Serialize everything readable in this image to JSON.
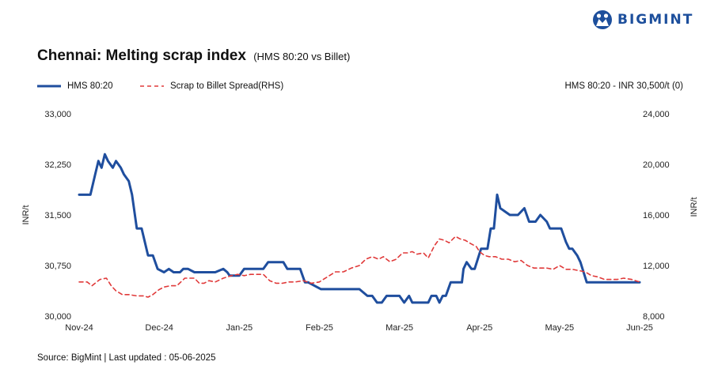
{
  "brand": {
    "name": "BIGMINT",
    "accent": "#1d4f9c"
  },
  "title": "Chennai: Melting scrap index",
  "subtitle": "(HMS 80:20 vs Billet)",
  "note": "HMS 80:20 - INR 30,500/t (0)",
  "source": "Source: BigMint | Last updated : 05-06-2025",
  "colors": {
    "primary": "#1f4e9e",
    "secondary": "#e03a3a"
  },
  "chart_data": {
    "type": "line",
    "x_categories": [
      "Nov-24",
      "Dec-24",
      "Jan-25",
      "Feb-25",
      "Mar-25",
      "Apr-25",
      "May-25",
      "Jun-25"
    ],
    "ylabel_left": "INR/t",
    "ylabel_right": "INR/t",
    "ylim_left": [
      30000,
      33000
    ],
    "ylim_right": [
      8000,
      24000
    ],
    "yticks_left": [
      "33,000",
      "32,250",
      "31,500",
      "30,750",
      "30,000"
    ],
    "yticks_right": [
      "24,000",
      "20,000",
      "16,000",
      "12,000",
      "8,000"
    ],
    "legend_position": "top-left",
    "grid": false,
    "series": [
      {
        "name": "HMS 80:20",
        "axis": "left",
        "style": "solid",
        "x": [
          0,
          0.14,
          0.2,
          0.24,
          0.28,
          0.32,
          0.36,
          0.42,
          0.46,
          0.52,
          0.56,
          0.62,
          0.66,
          0.72,
          0.78,
          0.86,
          0.92,
          0.98,
          1.06,
          1.12,
          1.18,
          1.24,
          1.26,
          1.3,
          1.36,
          1.44,
          1.52,
          1.6,
          1.7,
          1.8,
          1.85,
          1.88,
          1.94,
          2.0,
          2.06,
          2.3,
          2.36,
          2.4,
          2.55,
          2.6,
          2.72,
          2.76,
          2.82,
          2.86,
          3.02,
          3.06,
          3.14,
          3.2,
          3.5,
          3.6,
          3.62,
          3.66,
          3.72,
          3.74,
          3.78,
          3.84,
          4.0,
          4.06,
          4.12,
          4.16,
          4.2,
          4.26,
          4.3,
          4.34,
          4.36,
          4.4,
          4.46,
          4.5,
          4.54,
          4.58,
          4.64,
          4.7,
          4.74,
          4.78,
          4.8,
          4.84,
          4.9,
          4.94,
          5.02,
          5.06,
          5.1,
          5.14,
          5.18,
          5.22,
          5.26,
          5.38,
          5.44,
          5.48,
          5.56,
          5.62,
          5.66,
          5.7,
          5.76,
          5.84,
          5.88,
          5.96,
          6.02,
          6.08,
          6.12,
          6.16,
          6.22,
          6.26,
          6.34,
          6.4,
          6.46,
          6.5,
          6.56,
          6.64,
          6.68,
          6.72,
          6.76,
          6.9,
          7.0
        ],
        "values": [
          31800,
          31800,
          32100,
          32300,
          32200,
          32400,
          32300,
          32200,
          32300,
          32200,
          32100,
          32000,
          31800,
          31300,
          31300,
          30900,
          30900,
          30700,
          30650,
          30700,
          30650,
          30650,
          30650,
          30700,
          30700,
          30650,
          30650,
          30650,
          30650,
          30700,
          30650,
          30600,
          30600,
          30600,
          30700,
          30700,
          30800,
          30800,
          30800,
          30700,
          30700,
          30700,
          30500,
          30500,
          30400,
          30400,
          30400,
          30400,
          30400,
          30300,
          30300,
          30300,
          30200,
          30200,
          30200,
          30300,
          30300,
          30200,
          30300,
          30200,
          30200,
          30200,
          30200,
          30200,
          30200,
          30300,
          30300,
          30200,
          30300,
          30300,
          30500,
          30500,
          30500,
          30500,
          30700,
          30800,
          30700,
          30700,
          31000,
          31000,
          31000,
          31300,
          31300,
          31800,
          31600,
          31500,
          31500,
          31500,
          31600,
          31400,
          31400,
          31400,
          31500,
          31400,
          31300,
          31300,
          31300,
          31100,
          31000,
          31000,
          30900,
          30800,
          30500,
          30500,
          30500,
          30500,
          30500,
          30500,
          30500,
          30500,
          30500,
          30500,
          30500
        ]
      },
      {
        "name": "Scrap to Billet Spread(RHS)",
        "axis": "right",
        "style": "dashed",
        "x": [
          0,
          0.1,
          0.16,
          0.2,
          0.26,
          0.34,
          0.4,
          0.46,
          0.54,
          0.62,
          0.72,
          0.8,
          0.86,
          0.92,
          1.0,
          1.06,
          1.14,
          1.22,
          1.32,
          1.38,
          1.44,
          1.5,
          1.56,
          1.62,
          1.7,
          1.8,
          1.9,
          1.98,
          2.06,
          2.14,
          2.22,
          2.3,
          2.38,
          2.46,
          2.54,
          2.62,
          2.7,
          2.8,
          2.9,
          3.0,
          3.1,
          3.2,
          3.3,
          3.4,
          3.5,
          3.58,
          3.66,
          3.74,
          3.8,
          3.88,
          3.96,
          4.04,
          4.1,
          4.16,
          4.22,
          4.3,
          4.36,
          4.44,
          4.5,
          4.56,
          4.62,
          4.7,
          4.76,
          4.82,
          4.9,
          4.96,
          5.0,
          5.06,
          5.12,
          5.2,
          5.28,
          5.36,
          5.44,
          5.52,
          5.6,
          5.68,
          5.76,
          5.84,
          5.92,
          6.0,
          6.08,
          6.16,
          6.24,
          6.32,
          6.4,
          6.48,
          6.56,
          6.64,
          6.72,
          6.8,
          6.9,
          7.0
        ],
        "values": [
          10700,
          10700,
          10400,
          10600,
          10900,
          11000,
          10400,
          10000,
          9700,
          9700,
          9600,
          9600,
          9500,
          9700,
          10100,
          10300,
          10400,
          10400,
          11000,
          11000,
          11000,
          10600,
          10600,
          10800,
          10700,
          11000,
          11200,
          11300,
          11200,
          11300,
          11300,
          11300,
          10800,
          10600,
          10600,
          10700,
          10700,
          10800,
          10600,
          10700,
          11100,
          11500,
          11500,
          11800,
          12000,
          12500,
          12700,
          12500,
          12700,
          12300,
          12500,
          13000,
          13000,
          13100,
          12900,
          13000,
          12600,
          13600,
          14100,
          14000,
          13800,
          14300,
          14100,
          14000,
          13700,
          13500,
          13100,
          12800,
          12700,
          12700,
          12500,
          12500,
          12300,
          12400,
          12000,
          11800,
          11800,
          11800,
          11700,
          12000,
          11700,
          11700,
          11600,
          11500,
          11200,
          11100,
          10900,
          10900,
          10900,
          11000,
          10900,
          10700
        ]
      }
    ]
  }
}
